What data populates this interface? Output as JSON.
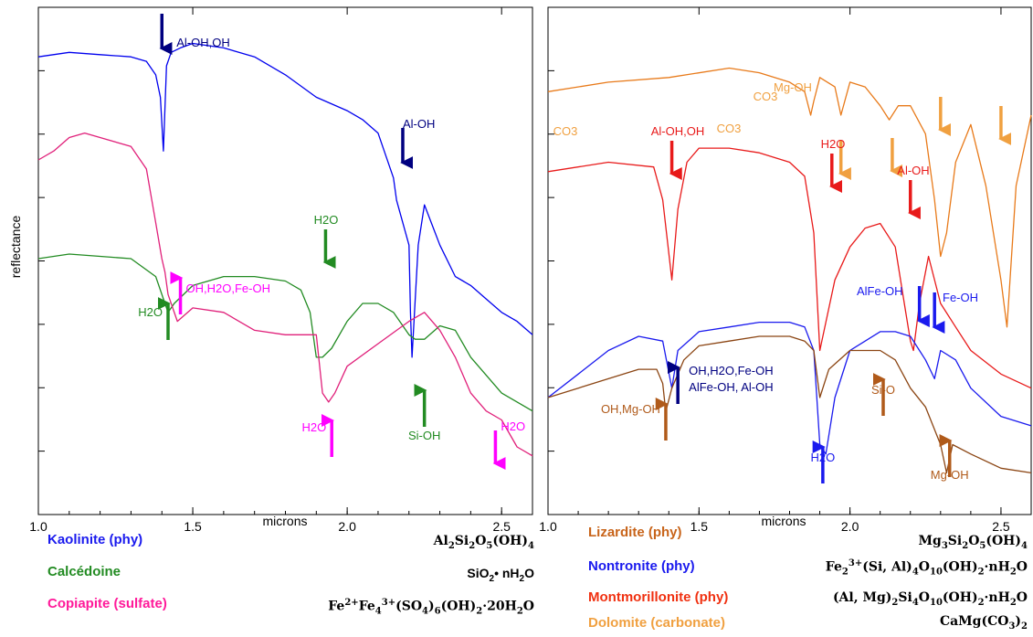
{
  "chart_data": [
    {
      "type": "line",
      "panel": "left",
      "ylabel": "reflectance",
      "xlabel": "microns",
      "xlim": [
        1.0,
        2.6
      ],
      "xticks": [
        "1.0",
        "1.5",
        "2.0",
        "2.5"
      ],
      "grid": false,
      "y_units": "arbitrary (offset spectra)",
      "series": [
        {
          "name": "Kaolinite (phy)",
          "color": "#0000ee",
          "x": [
            1.0,
            1.1,
            1.2,
            1.3,
            1.35,
            1.38,
            1.395,
            1.405,
            1.415,
            1.43,
            1.46,
            1.5,
            1.6,
            1.7,
            1.8,
            1.9,
            2.0,
            2.05,
            2.1,
            2.15,
            2.16,
            2.18,
            2.2,
            2.205,
            2.21,
            2.23,
            2.25,
            2.3,
            2.35,
            2.4,
            2.45,
            2.5,
            2.55,
            2.6
          ],
          "y": [
            0.97,
            0.98,
            0.975,
            0.97,
            0.96,
            0.93,
            0.88,
            0.76,
            0.95,
            0.98,
            0.99,
            1.0,
            0.99,
            0.97,
            0.93,
            0.88,
            0.85,
            0.83,
            0.8,
            0.7,
            0.65,
            0.6,
            0.55,
            0.4,
            0.3,
            0.55,
            0.64,
            0.55,
            0.48,
            0.46,
            0.43,
            0.4,
            0.38,
            0.35
          ]
        },
        {
          "name": "Calcédoine",
          "color": "#228b22",
          "x": [
            1.0,
            1.1,
            1.2,
            1.3,
            1.38,
            1.41,
            1.42,
            1.44,
            1.5,
            1.6,
            1.7,
            1.8,
            1.85,
            1.88,
            1.9,
            1.92,
            1.95,
            2.0,
            2.05,
            2.1,
            2.15,
            2.2,
            2.22,
            2.25,
            2.3,
            2.35,
            2.4,
            2.5,
            2.6
          ],
          "y": [
            0.52,
            0.53,
            0.525,
            0.52,
            0.48,
            0.42,
            0.4,
            0.42,
            0.46,
            0.48,
            0.48,
            0.47,
            0.45,
            0.4,
            0.3,
            0.3,
            0.32,
            0.38,
            0.42,
            0.42,
            0.4,
            0.35,
            0.34,
            0.34,
            0.37,
            0.36,
            0.3,
            0.22,
            0.18
          ]
        },
        {
          "name": "Copiapite (sulfate)",
          "color": "#e0207a",
          "x": [
            1.0,
            1.05,
            1.1,
            1.15,
            1.2,
            1.3,
            1.35,
            1.38,
            1.4,
            1.41,
            1.42,
            1.45,
            1.5,
            1.6,
            1.7,
            1.8,
            1.9,
            1.92,
            1.94,
            1.96,
            2.0,
            2.1,
            2.2,
            2.25,
            2.3,
            2.35,
            2.4,
            2.45,
            2.5,
            2.55,
            2.6
          ],
          "y": [
            0.74,
            0.76,
            0.79,
            0.8,
            0.79,
            0.77,
            0.72,
            0.6,
            0.52,
            0.49,
            0.44,
            0.38,
            0.41,
            0.4,
            0.36,
            0.35,
            0.35,
            0.22,
            0.2,
            0.22,
            0.28,
            0.33,
            0.38,
            0.4,
            0.36,
            0.3,
            0.22,
            0.18,
            0.16,
            0.1,
            0.08
          ]
        }
      ],
      "annotations": [
        {
          "text": "Al-OH,OH",
          "x": 1.4,
          "color": "#000080",
          "arrow": "down"
        },
        {
          "text": "Al-OH",
          "x": 2.18,
          "color": "#000080",
          "arrow": "down"
        },
        {
          "text": "H2O",
          "x": 1.93,
          "color": "#228b22",
          "arrow": "down"
        },
        {
          "text": "H2O",
          "x": 1.42,
          "color": "#228b22",
          "arrow": "up"
        },
        {
          "text": "OH,H2O,Fe-OH",
          "x": 1.46,
          "color": "#ff00ff",
          "arrow": "up"
        },
        {
          "text": "Si-OH",
          "x": 2.25,
          "color": "#228b22",
          "arrow": "up"
        },
        {
          "text": "H2O",
          "x": 1.95,
          "color": "#ff00ff",
          "arrow": "up"
        },
        {
          "text": "H2O",
          "x": 2.48,
          "color": "#ff00ff",
          "arrow": "down"
        }
      ]
    },
    {
      "type": "line",
      "panel": "right",
      "xlabel": "microns",
      "xlim": [
        1.0,
        2.6
      ],
      "xticks": [
        "1.0",
        "1.5",
        "2.0",
        "2.5"
      ],
      "grid": false,
      "y_units": "arbitrary (offset spectra)",
      "series": [
        {
          "name": "Dolomite (carbonate)",
          "color": "#e87a1a",
          "x": [
            1.0,
            1.2,
            1.4,
            1.6,
            1.7,
            1.8,
            1.85,
            1.87,
            1.88,
            1.9,
            1.95,
            1.97,
            2.0,
            2.05,
            2.1,
            2.13,
            2.16,
            2.2,
            2.25,
            2.28,
            2.3,
            2.32,
            2.35,
            2.4,
            2.45,
            2.5,
            2.52,
            2.55,
            2.6
          ],
          "y": [
            0.85,
            0.87,
            0.88,
            0.9,
            0.89,
            0.87,
            0.85,
            0.8,
            0.83,
            0.88,
            0.86,
            0.8,
            0.87,
            0.86,
            0.82,
            0.79,
            0.82,
            0.82,
            0.76,
            0.62,
            0.5,
            0.55,
            0.7,
            0.78,
            0.65,
            0.45,
            0.35,
            0.65,
            0.8
          ]
        },
        {
          "name": "Montmorillonite (phy)",
          "color": "#e81a1a",
          "x": [
            1.0,
            1.2,
            1.35,
            1.38,
            1.41,
            1.43,
            1.46,
            1.5,
            1.6,
            1.7,
            1.8,
            1.85,
            1.88,
            1.9,
            1.92,
            1.95,
            2.0,
            2.05,
            2.1,
            2.15,
            2.18,
            2.2,
            2.21,
            2.23,
            2.26,
            2.3,
            2.35,
            2.4,
            2.5,
            2.6
          ],
          "y": [
            0.68,
            0.7,
            0.69,
            0.62,
            0.45,
            0.6,
            0.7,
            0.73,
            0.73,
            0.72,
            0.7,
            0.67,
            0.55,
            0.3,
            0.36,
            0.45,
            0.52,
            0.56,
            0.57,
            0.52,
            0.4,
            0.32,
            0.3,
            0.4,
            0.5,
            0.4,
            0.35,
            0.3,
            0.25,
            0.22
          ]
        },
        {
          "name": "Nontronite (phy)",
          "color": "#1a1aee",
          "x": [
            1.0,
            1.1,
            1.2,
            1.3,
            1.38,
            1.41,
            1.43,
            1.5,
            1.6,
            1.7,
            1.8,
            1.85,
            1.88,
            1.9,
            1.92,
            1.95,
            2.0,
            2.1,
            2.15,
            2.2,
            2.23,
            2.25,
            2.28,
            2.3,
            2.35,
            2.4,
            2.5,
            2.6
          ],
          "y": [
            0.2,
            0.25,
            0.3,
            0.33,
            0.32,
            0.22,
            0.3,
            0.34,
            0.35,
            0.36,
            0.36,
            0.35,
            0.3,
            0.1,
            0.08,
            0.2,
            0.3,
            0.34,
            0.34,
            0.33,
            0.3,
            0.28,
            0.24,
            0.3,
            0.28,
            0.22,
            0.16,
            0.14
          ]
        },
        {
          "name": "Lizardite (phy)",
          "color": "#8b4513",
          "x": [
            1.0,
            1.1,
            1.2,
            1.3,
            1.36,
            1.38,
            1.39,
            1.41,
            1.45,
            1.5,
            1.6,
            1.7,
            1.8,
            1.85,
            1.88,
            1.9,
            1.93,
            2.0,
            2.05,
            2.1,
            2.15,
            2.2,
            2.25,
            2.3,
            2.32,
            2.34,
            2.4,
            2.5,
            2.6
          ],
          "y": [
            0.2,
            0.22,
            0.24,
            0.26,
            0.26,
            0.23,
            0.17,
            0.22,
            0.28,
            0.31,
            0.32,
            0.33,
            0.33,
            0.32,
            0.3,
            0.2,
            0.26,
            0.3,
            0.3,
            0.3,
            0.28,
            0.22,
            0.18,
            0.1,
            0.04,
            0.1,
            0.08,
            0.05,
            0.04
          ]
        }
      ],
      "annotations": [
        {
          "text": "CO3",
          "x": 1.97,
          "color": "#f0a040",
          "arrow": "down"
        },
        {
          "text": "CO3",
          "x": 2.14,
          "color": "#f0a040",
          "arrow": "down"
        },
        {
          "text": "Mg-OH",
          "x": 2.3,
          "color": "#f0a040",
          "arrow": "down"
        },
        {
          "text": "CO3",
          "x": 2.5,
          "color": "#f0a040",
          "arrow": "down"
        },
        {
          "text": "Al-OH,OH",
          "x": 1.41,
          "color": "#e81a1a",
          "arrow": "down"
        },
        {
          "text": "H2O",
          "x": 1.94,
          "color": "#e81a1a",
          "arrow": "down"
        },
        {
          "text": "Al-OH",
          "x": 2.2,
          "color": "#e81a1a",
          "arrow": "down"
        },
        {
          "text": "AlFe-OH",
          "x": 2.23,
          "color": "#1a1aee",
          "arrow": "down"
        },
        {
          "text": "Fe-OH",
          "x": 2.28,
          "color": "#1a1aee",
          "arrow": "down"
        },
        {
          "text": "OH,H2O,Fe-OH",
          "x": 1.43,
          "color": "#000080",
          "arrow": "up"
        },
        {
          "text": "AlFe-OH, Al-OH",
          "x": 1.43,
          "color": "#000080",
          "arrow": "none"
        },
        {
          "text": "OH,Mg-OH",
          "x": 1.39,
          "color": "#b05a1a",
          "arrow": "up"
        },
        {
          "text": "H2O",
          "x": 1.91,
          "color": "#1a1aee",
          "arrow": "up"
        },
        {
          "text": "Si-O",
          "x": 2.11,
          "color": "#b05a1a",
          "arrow": "up"
        },
        {
          "text": "Mg-OH",
          "x": 2.33,
          "color": "#b05a1a",
          "arrow": "up"
        }
      ]
    }
  ],
  "legend_left": [
    {
      "name": "Kaolinite (phy)",
      "color": "#1a1aee"
    },
    {
      "name": "Calcédoine",
      "color": "#228b22"
    },
    {
      "name": "Copiapite (sulfate)",
      "color": "#ff1a9a"
    }
  ],
  "legend_right": [
    {
      "name": "Lizardite (phy)",
      "color": "#c8641a"
    },
    {
      "name": "Nontronite (phy)",
      "color": "#1a1aee"
    },
    {
      "name": "Montmorillonite (phy)",
      "color": "#f03010"
    },
    {
      "name": "Dolomite (carbonate)",
      "color": "#f0a040"
    }
  ]
}
